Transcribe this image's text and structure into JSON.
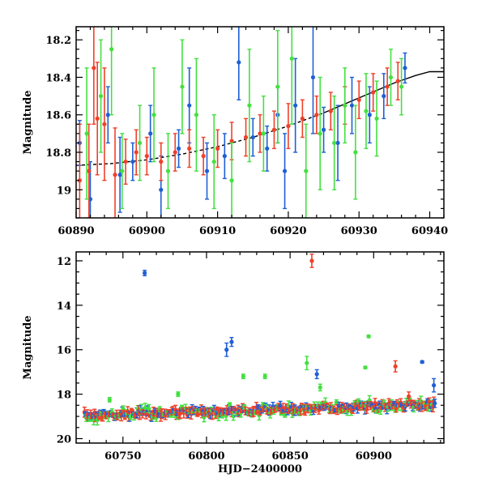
{
  "chart_data": [
    {
      "type": "scatter",
      "title": "",
      "xlabel": "",
      "ylabel": "Magnitude",
      "xlim": [
        60890,
        60942
      ],
      "ylim": [
        19.15,
        18.13
      ],
      "y_inverted": true,
      "xticks": [
        60890,
        60900,
        60910,
        60920,
        60930,
        60940
      ],
      "yticks": [
        18.2,
        18.4,
        18.6,
        18.8,
        19
      ],
      "ytick_labels": [
        "18.2",
        "18.4",
        "18.6",
        "18.8",
        "19"
      ],
      "colors": {
        "blue": "#1f5fd6",
        "red": "#f0402a",
        "green": "#44e040",
        "model": "#000000"
      },
      "model_curve": {
        "style": "dashed-then-solid",
        "solid_from_x": 60925,
        "points": [
          [
            60890,
            18.87
          ],
          [
            60895,
            18.86
          ],
          [
            60900,
            18.84
          ],
          [
            60905,
            18.81
          ],
          [
            60910,
            18.77
          ],
          [
            60915,
            18.72
          ],
          [
            60920,
            18.66
          ],
          [
            60925,
            18.59
          ],
          [
            60930,
            18.51
          ],
          [
            60935,
            18.43
          ],
          [
            60938,
            18.39
          ],
          [
            60940,
            18.37
          ],
          [
            60942,
            18.37
          ]
        ]
      },
      "series": [
        {
          "color": "blue",
          "points": [
            [
              60890.5,
              18.75,
              0.12
            ],
            [
              60892.0,
              19.05,
              0.2
            ],
            [
              60894.5,
              18.6,
              0.15
            ],
            [
              60896.2,
              18.92,
              0.2
            ],
            [
              60898.0,
              18.85,
              0.1
            ],
            [
              60900.5,
              18.7,
              0.15
            ],
            [
              60902.0,
              19.0,
              0.18
            ],
            [
              60904.5,
              18.78,
              0.1
            ],
            [
              60906.0,
              18.55,
              0.2
            ],
            [
              60908.5,
              18.9,
              0.15
            ],
            [
              60911.0,
              18.82,
              0.12
            ],
            [
              60913.0,
              18.32,
              0.2
            ],
            [
              60915.0,
              18.72,
              0.1
            ],
            [
              60917.0,
              18.78,
              0.12
            ],
            [
              60918.5,
              18.6,
              0.15
            ],
            [
              60919.5,
              18.9,
              0.2
            ],
            [
              60921.0,
              18.55,
              0.25
            ],
            [
              60923.5,
              18.4,
              0.3
            ],
            [
              60925.0,
              18.68,
              0.12
            ],
            [
              60927.0,
              18.75,
              0.2
            ],
            [
              60929.0,
              18.55,
              0.15
            ],
            [
              60931.5,
              18.6,
              0.15
            ],
            [
              60933.5,
              18.5,
              0.12
            ],
            [
              60936.5,
              18.35,
              0.08
            ]
          ]
        },
        {
          "color": "red",
          "points": [
            [
              60890.5,
              18.95,
              0.3
            ],
            [
              60891.8,
              18.9,
              0.25
            ],
            [
              60892.5,
              18.35,
              0.3
            ],
            [
              60893.0,
              18.62,
              0.3
            ],
            [
              60894.0,
              18.65,
              0.3
            ],
            [
              60895.5,
              18.92,
              0.25
            ],
            [
              60897.0,
              18.85,
              0.12
            ],
            [
              60898.5,
              18.8,
              0.12
            ],
            [
              60900.0,
              18.82,
              0.1
            ],
            [
              60902.0,
              18.85,
              0.1
            ],
            [
              60904.0,
              18.8,
              0.1
            ],
            [
              60906.0,
              18.78,
              0.1
            ],
            [
              60908.0,
              18.82,
              0.1
            ],
            [
              60910.0,
              18.78,
              0.1
            ],
            [
              60912.0,
              18.74,
              0.1
            ],
            [
              60914.0,
              18.72,
              0.1
            ],
            [
              60916.0,
              18.7,
              0.1
            ],
            [
              60918.0,
              18.68,
              0.1
            ],
            [
              60920.0,
              18.66,
              0.12
            ],
            [
              60922.0,
              18.62,
              0.1
            ],
            [
              60924.0,
              18.6,
              0.1
            ],
            [
              60926.0,
              18.58,
              0.1
            ],
            [
              60928.0,
              18.55,
              0.1
            ],
            [
              60930.0,
              18.52,
              0.1
            ],
            [
              60932.0,
              18.48,
              0.1
            ],
            [
              60934.0,
              18.45,
              0.1
            ],
            [
              60935.5,
              18.42,
              0.1
            ]
          ]
        },
        {
          "color": "green",
          "points": [
            [
              60891.5,
              18.7,
              0.35
            ],
            [
              60893.5,
              18.5,
              0.3
            ],
            [
              60895.0,
              18.25,
              0.35
            ],
            [
              60896.5,
              18.9,
              0.2
            ],
            [
              60899.0,
              18.75,
              0.2
            ],
            [
              60901.0,
              18.6,
              0.25
            ],
            [
              60903.0,
              18.9,
              0.2
            ],
            [
              60905.0,
              18.45,
              0.25
            ],
            [
              60907.0,
              18.6,
              0.3
            ],
            [
              60909.5,
              18.85,
              0.25
            ],
            [
              60912.0,
              18.95,
              0.2
            ],
            [
              60914.5,
              18.55,
              0.3
            ],
            [
              60916.5,
              18.7,
              0.2
            ],
            [
              60918.5,
              18.45,
              0.3
            ],
            [
              60920.5,
              18.3,
              0.35
            ],
            [
              60922.5,
              18.9,
              0.25
            ],
            [
              60924.5,
              18.7,
              0.3
            ],
            [
              60926.5,
              18.75,
              0.25
            ],
            [
              60928.0,
              18.55,
              0.2
            ],
            [
              60929.5,
              18.8,
              0.25
            ],
            [
              60931.0,
              18.58,
              0.2
            ],
            [
              60932.5,
              18.62,
              0.2
            ],
            [
              60934.5,
              18.4,
              0.15
            ],
            [
              60936.0,
              18.45,
              0.15
            ]
          ]
        }
      ]
    },
    {
      "type": "scatter",
      "title": "",
      "xlabel": "HJD−2400000",
      "ylabel": "Magnitude",
      "xlim": [
        60722,
        60942
      ],
      "ylim": [
        20.2,
        11.6
      ],
      "y_inverted": true,
      "xticks": [
        60750,
        60800,
        60850,
        60900
      ],
      "yticks": [
        12,
        14,
        16,
        18,
        20
      ],
      "colors": {
        "blue": "#1f5fd6",
        "red": "#f0402a",
        "green": "#44e040"
      },
      "outliers": [
        {
          "color": "blue",
          "x": 60763,
          "y": 12.55,
          "err": 0.12
        },
        {
          "color": "red",
          "x": 60863,
          "y": 12.0,
          "err": 0.3
        },
        {
          "color": "blue",
          "x": 60812,
          "y": 16.0,
          "err": 0.3
        },
        {
          "color": "blue",
          "x": 60815,
          "y": 15.65,
          "err": 0.2
        },
        {
          "color": "green",
          "x": 60897,
          "y": 15.4,
          "err": 0.05
        },
        {
          "color": "blue",
          "x": 60929,
          "y": 16.55,
          "err": 0.05
        },
        {
          "color": "red",
          "x": 60913,
          "y": 16.75,
          "err": 0.25
        },
        {
          "color": "green",
          "x": 60860,
          "y": 16.6,
          "err": 0.3
        },
        {
          "color": "green",
          "x": 60895,
          "y": 16.8,
          "err": 0.05
        },
        {
          "color": "green",
          "x": 60835,
          "y": 17.2,
          "err": 0.1
        },
        {
          "color": "green",
          "x": 60822,
          "y": 17.2,
          "err": 0.1
        },
        {
          "color": "blue",
          "x": 60866,
          "y": 17.1,
          "err": 0.2
        },
        {
          "color": "green",
          "x": 60783,
          "y": 18.0,
          "err": 0.1
        },
        {
          "color": "green",
          "x": 60742,
          "y": 18.25,
          "err": 0.1
        },
        {
          "color": "blue",
          "x": 60936,
          "y": 17.6,
          "err": 0.3
        },
        {
          "color": "green",
          "x": 60868,
          "y": 17.7,
          "err": 0.15
        },
        {
          "color": "red",
          "x": 60921,
          "y": 18.1,
          "err": 0.2
        }
      ],
      "band": {
        "x_start": 60727,
        "x_end": 60937,
        "y_start": 18.95,
        "y_end": 18.45,
        "scatter": 0.28
      }
    }
  ]
}
